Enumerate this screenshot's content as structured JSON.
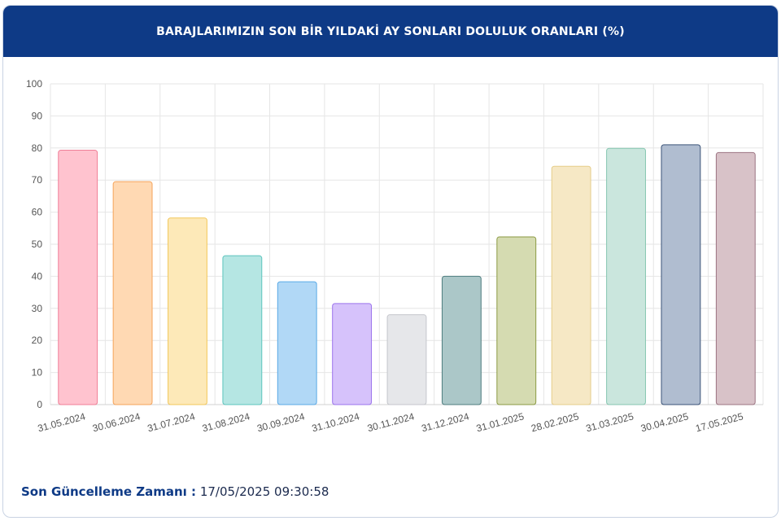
{
  "header": {
    "title": "BARAJLARIMIZIN SON BİR YILDAKİ AY SONLARI DOLULUK ORANLARI (%)"
  },
  "footer": {
    "label": "Son Güncelleme Zamanı :",
    "value": "17/05/2025 09:30:58"
  },
  "colors": {
    "header_bg": "#0e3a86"
  },
  "chart_data": {
    "type": "bar",
    "title": "BARAJLARIMIZIN SON BİR YILDAKİ AY SONLARI DOLULUK ORANLARI (%)",
    "xlabel": "",
    "ylabel": "",
    "ylim": [
      0,
      100
    ],
    "yticks": [
      0,
      10,
      20,
      30,
      40,
      50,
      60,
      70,
      80,
      90,
      100
    ],
    "grid": true,
    "categories": [
      "31.05.2024",
      "30.06.2024",
      "31.07.2024",
      "31.08.2024",
      "30.09.2024",
      "31.10.2024",
      "30.11.2024",
      "31.12.2024",
      "31.01.2025",
      "28.02.2025",
      "31.03.2025",
      "30.04.2025",
      "17.05.2025"
    ],
    "values": [
      79.3,
      69.5,
      58.2,
      46.4,
      38.3,
      31.5,
      28.0,
      40.0,
      52.3,
      74.3,
      79.9,
      81.0,
      78.6
    ],
    "bar_colors": [
      {
        "fill": "#ffc3cf",
        "stroke": "#f07e97"
      },
      {
        "fill": "#ffd9b3",
        "stroke": "#f5a35a"
      },
      {
        "fill": "#fde9b8",
        "stroke": "#f2c75a"
      },
      {
        "fill": "#b5e6e3",
        "stroke": "#5cc4bd"
      },
      {
        "fill": "#b1d8f6",
        "stroke": "#5aaae6"
      },
      {
        "fill": "#d6c2fb",
        "stroke": "#9b73ec"
      },
      {
        "fill": "#e6e7ea",
        "stroke": "#c4c6cc"
      },
      {
        "fill": "#abc7c8",
        "stroke": "#4f7d7f"
      },
      {
        "fill": "#d5dbb1",
        "stroke": "#8b9a42"
      },
      {
        "fill": "#f6e8c5",
        "stroke": "#e5cd8a"
      },
      {
        "fill": "#cae6dd",
        "stroke": "#85c6b0"
      },
      {
        "fill": "#b0bdd0",
        "stroke": "#3b5378"
      },
      {
        "fill": "#d8c2c8",
        "stroke": "#9c7482"
      }
    ]
  }
}
